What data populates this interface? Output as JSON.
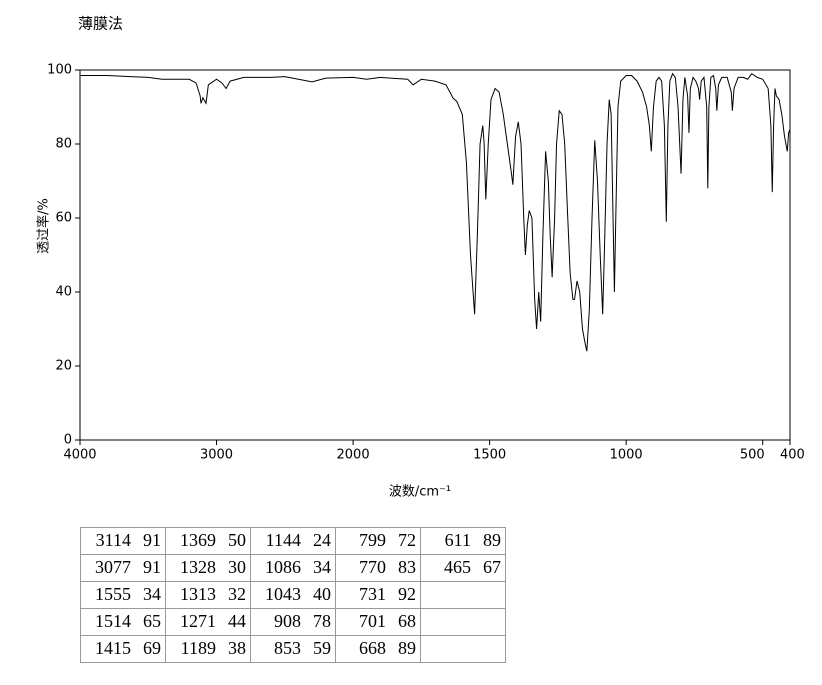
{
  "chart_data": {
    "type": "line",
    "title": "薄膜法",
    "xlabel": "波数/cm⁻¹",
    "ylabel": "透过率/%",
    "xlim": [
      4000,
      400
    ],
    "x_scale_break": 2000,
    "xticks": [
      4000,
      3000,
      2000,
      1500,
      1000,
      500,
      400
    ],
    "ylim": [
      0,
      100
    ],
    "yticks": [
      0,
      20,
      40,
      60,
      80,
      100
    ],
    "series": [
      {
        "color": "#000000",
        "x": [
          4000,
          3800,
          3500,
          3400,
          3200,
          3150,
          3120,
          3114,
          3100,
          3077,
          3060,
          3000,
          2960,
          2930,
          2900,
          2800,
          2600,
          2500,
          2400,
          2300,
          2200,
          2000,
          1950,
          1900,
          1800,
          1780,
          1750,
          1700,
          1660,
          1645,
          1635,
          1620,
          1600,
          1585,
          1570,
          1555,
          1545,
          1535,
          1525,
          1520,
          1514,
          1505,
          1495,
          1480,
          1465,
          1450,
          1435,
          1420,
          1415,
          1405,
          1395,
          1385,
          1375,
          1369,
          1362,
          1355,
          1345,
          1335,
          1328,
          1320,
          1313,
          1305,
          1295,
          1285,
          1278,
          1271,
          1262,
          1255,
          1245,
          1235,
          1225,
          1215,
          1205,
          1195,
          1189,
          1180,
          1170,
          1160,
          1150,
          1144,
          1135,
          1125,
          1115,
          1105,
          1095,
          1086,
          1080,
          1070,
          1062,
          1055,
          1048,
          1043,
          1038,
          1030,
          1020,
          1000,
          980,
          960,
          940,
          925,
          915,
          908,
          900,
          890,
          880,
          870,
          860,
          853,
          847,
          840,
          830,
          820,
          810,
          799,
          792,
          785,
          775,
          770,
          765,
          755,
          745,
          735,
          731,
          725,
          715,
          705,
          701,
          697,
          690,
          680,
          672,
          668,
          662,
          650,
          630,
          615,
          611,
          605,
          590,
          570,
          555,
          540,
          520,
          500,
          480,
          470,
          465,
          460,
          455,
          450,
          440,
          430,
          420,
          410,
          405,
          400
        ],
        "values": [
          98.5,
          98.5,
          98,
          97.5,
          97.5,
          96.5,
          93,
          91,
          92.5,
          91,
          96,
          97.5,
          96.5,
          95,
          97,
          98,
          98,
          98.2,
          97.5,
          96.8,
          97.8,
          98,
          97.5,
          98,
          97.5,
          96,
          97.5,
          97,
          96,
          94,
          92.5,
          91.5,
          88,
          75,
          50,
          34,
          55,
          80,
          85,
          80,
          65,
          80,
          92,
          95,
          94,
          88,
          80,
          72,
          69,
          82,
          86,
          80,
          60,
          50,
          58,
          62,
          60,
          38,
          30,
          40,
          32,
          55,
          78,
          70,
          55,
          44,
          60,
          80,
          89,
          88,
          80,
          62,
          45,
          38,
          38,
          43,
          40,
          30,
          26,
          24,
          35,
          60,
          81,
          70,
          50,
          34,
          50,
          80,
          92,
          88,
          60,
          40,
          60,
          90,
          97,
          98.5,
          98.5,
          97,
          94,
          90,
          85,
          78,
          90,
          97,
          98,
          97,
          85,
          59,
          85,
          97,
          99,
          98,
          90,
          72,
          92,
          98,
          93,
          83,
          95,
          98,
          97,
          95,
          92,
          97,
          98,
          90,
          68,
          90,
          98,
          98.5,
          95,
          89,
          96,
          98,
          98,
          94,
          89,
          95,
          98,
          98,
          97.5,
          99,
          98,
          97.5,
          95,
          85,
          67,
          85,
          95,
          93,
          92,
          88,
          82,
          78,
          83,
          84
        ]
      }
    ]
  },
  "table": {
    "columns": [
      [
        [
          3114,
          91
        ],
        [
          3077,
          91
        ],
        [
          1555,
          34
        ],
        [
          1514,
          65
        ],
        [
          1415,
          69
        ]
      ],
      [
        [
          1369,
          50
        ],
        [
          1328,
          30
        ],
        [
          1313,
          32
        ],
        [
          1271,
          44
        ],
        [
          1189,
          38
        ]
      ],
      [
        [
          1144,
          24
        ],
        [
          1086,
          34
        ],
        [
          1043,
          40
        ],
        [
          908,
          78
        ],
        [
          853,
          59
        ]
      ],
      [
        [
          799,
          72
        ],
        [
          770,
          83
        ],
        [
          731,
          92
        ],
        [
          701,
          68
        ],
        [
          668,
          89
        ]
      ],
      [
        [
          611,
          89
        ],
        [
          465,
          67
        ]
      ]
    ]
  }
}
